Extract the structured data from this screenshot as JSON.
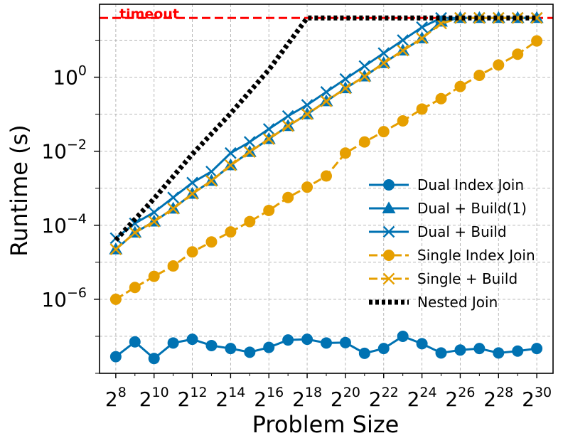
{
  "chart_data": {
    "type": "line",
    "title": "",
    "xlabel": "Problem Size",
    "ylabel": "Runtime (s)",
    "x_scale": "log2",
    "y_scale": "log10",
    "x": [
      8,
      9,
      10,
      11,
      12,
      13,
      14,
      15,
      16,
      17,
      18,
      19,
      20,
      21,
      22,
      23,
      24,
      25,
      26,
      27,
      28,
      29,
      30
    ],
    "xticks": [
      8,
      10,
      12,
      14,
      16,
      18,
      20,
      22,
      24,
      26,
      28,
      30
    ],
    "xtick_base": "2",
    "xtick_labels": [
      "8",
      "10",
      "12",
      "14",
      "16",
      "18",
      "20",
      "22",
      "24",
      "26",
      "28",
      "30"
    ],
    "xlim": [
      7.15,
      30.85
    ],
    "yticks": [
      -6,
      -4,
      -2,
      0
    ],
    "ytick_base": "10",
    "ytick_labels": [
      "−6",
      "−4",
      "−2",
      "0"
    ],
    "ylim_log10": [
      -8.0,
      1.97
    ],
    "grid": true,
    "legend_position": "center-right",
    "timeout": {
      "value_log10": 1.6,
      "label": "timeout",
      "color": "#ff0000"
    },
    "series": [
      {
        "name": "Dual Index Join",
        "color": "#0072b2",
        "linestyle": "solid",
        "marker": "circle",
        "x": [
          8,
          9,
          10,
          11,
          12,
          13,
          14,
          15,
          16,
          17,
          18,
          19,
          20,
          21,
          22,
          23,
          24,
          25,
          26,
          27,
          28,
          29,
          30
        ],
        "log10_values": [
          -7.55,
          -7.15,
          -7.6,
          -7.18,
          -7.08,
          -7.25,
          -7.33,
          -7.43,
          -7.3,
          -7.1,
          -7.08,
          -7.18,
          -7.17,
          -7.46,
          -7.33,
          -7.0,
          -7.2,
          -7.45,
          -7.37,
          -7.33,
          -7.45,
          -7.4,
          -7.33
        ]
      },
      {
        "name": "Dual + Build(1)",
        "color": "#0072b2",
        "linestyle": "solid",
        "marker": "triangle",
        "x": [
          8,
          9,
          10,
          11,
          12,
          13,
          14,
          15,
          16,
          17,
          18,
          19,
          20,
          21,
          22,
          23,
          24,
          25,
          26,
          27,
          28,
          29,
          30
        ],
        "log10_values": [
          -4.65,
          -4.2,
          -3.9,
          -3.55,
          -3.15,
          -2.8,
          -2.38,
          -2.02,
          -1.67,
          -1.32,
          -1.0,
          -0.65,
          -0.3,
          0.02,
          0.38,
          0.72,
          1.05,
          1.5,
          1.6,
          1.6,
          1.6,
          1.6,
          1.6
        ]
      },
      {
        "name": "Dual + Build",
        "color": "#0072b2",
        "linestyle": "solid",
        "marker": "x",
        "x": [
          8,
          9,
          10,
          11,
          12,
          13,
          14,
          15,
          16,
          17,
          18,
          19,
          20,
          21,
          22,
          23,
          24,
          25,
          26,
          27,
          28,
          29,
          30
        ],
        "log10_values": [
          -4.35,
          -3.95,
          -3.65,
          -3.25,
          -2.85,
          -2.55,
          -2.05,
          -1.75,
          -1.4,
          -1.05,
          -0.75,
          -0.4,
          -0.05,
          0.3,
          0.65,
          1.0,
          1.35,
          1.6,
          1.6,
          1.6,
          1.6,
          1.6,
          1.6
        ]
      },
      {
        "name": "Single Index Join",
        "color": "#e69f00",
        "linestyle": "dashed",
        "marker": "circle",
        "x": [
          8,
          9,
          10,
          11,
          12,
          13,
          14,
          15,
          16,
          17,
          18,
          19,
          20,
          21,
          22,
          23,
          24,
          25,
          26,
          27,
          28,
          29,
          30
        ],
        "log10_values": [
          -6.0,
          -5.68,
          -5.38,
          -5.1,
          -4.72,
          -4.45,
          -4.18,
          -3.9,
          -3.6,
          -3.25,
          -2.97,
          -2.67,
          -2.05,
          -1.75,
          -1.47,
          -1.18,
          -0.86,
          -0.58,
          -0.25,
          0.05,
          0.33,
          0.62,
          0.98
        ]
      },
      {
        "name": "Single + Build",
        "color": "#e69f00",
        "linestyle": "dashed",
        "marker": "x",
        "x": [
          8,
          9,
          10,
          11,
          12,
          13,
          14,
          15,
          16,
          17,
          18,
          19,
          20,
          21,
          22,
          23,
          24,
          25,
          26,
          27,
          28,
          29,
          30
        ],
        "log10_values": [
          -4.65,
          -4.2,
          -3.9,
          -3.55,
          -3.15,
          -2.8,
          -2.38,
          -2.02,
          -1.67,
          -1.32,
          -1.0,
          -0.65,
          -0.3,
          0.02,
          0.38,
          0.72,
          1.05,
          1.45,
          1.6,
          1.6,
          1.6,
          1.6,
          1.6
        ]
      },
      {
        "name": "Nested Join",
        "color": "#000000",
        "linestyle": "dotted",
        "marker": "none",
        "x": [
          8,
          10,
          12,
          14,
          16,
          18,
          20,
          22,
          24,
          26,
          28,
          30
        ],
        "log10_values": [
          -4.4,
          -3.28,
          -2.08,
          -0.98,
          0.2,
          1.6,
          1.6,
          1.6,
          1.6,
          1.6,
          1.6,
          1.6
        ]
      }
    ]
  }
}
